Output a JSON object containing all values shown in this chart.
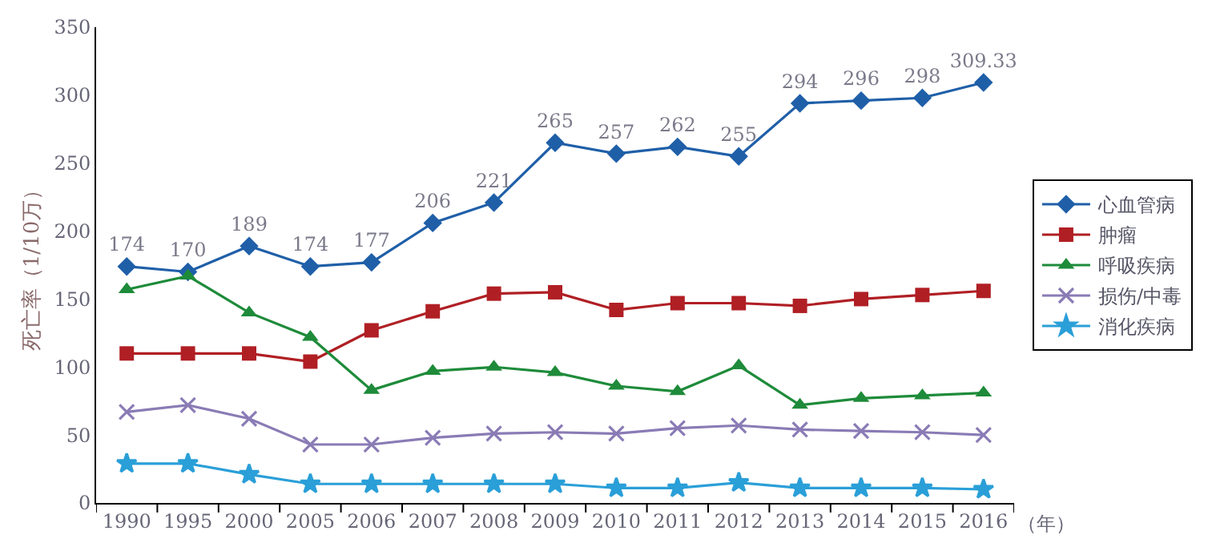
{
  "chart_data": {
    "type": "line",
    "ylabel": "死亡率（1/10万）",
    "annotations": [
      "（年）"
    ],
    "categories": [
      "1990",
      "1995",
      "2000",
      "2005",
      "2006",
      "2007",
      "2008",
      "2009",
      "2010",
      "2011",
      "2012",
      "2013",
      "2014",
      "2015",
      "2016"
    ],
    "ylim": [
      0,
      350
    ],
    "yticks": [
      0,
      50,
      100,
      150,
      200,
      250,
      300,
      350
    ],
    "grid": false,
    "legend": "right",
    "series": [
      {
        "name": "心血管病",
        "color": "#1f5fa8",
        "marker": "diamond",
        "values": [
          174,
          170,
          189,
          174,
          177,
          206,
          221,
          265,
          257,
          262,
          255,
          294,
          296,
          298,
          309.33
        ],
        "value_labels": [
          "174",
          "170",
          "189",
          "174",
          "177",
          "206",
          "221",
          "265",
          "257",
          "262",
          "255",
          "294",
          "296",
          "298",
          "309.33"
        ]
      },
      {
        "name": "肿瘤",
        "color": "#b01f24",
        "marker": "square",
        "values": [
          110,
          110,
          110,
          104,
          127,
          141,
          154,
          155,
          142,
          147,
          147,
          145,
          150,
          153,
          156
        ]
      },
      {
        "name": "呼吸疾病",
        "color": "#1e8b3a",
        "marker": "triangle",
        "values": [
          157,
          167,
          140,
          122,
          83,
          97,
          100,
          96,
          86,
          82,
          101,
          72,
          77,
          79,
          81
        ]
      },
      {
        "name": "损伤/中毒",
        "color": "#8a7bb5",
        "marker": "cross",
        "values": [
          67,
          72,
          62,
          43,
          43,
          48,
          51,
          52,
          51,
          55,
          57,
          54,
          53,
          52,
          50
        ]
      },
      {
        "name": "消化疾病",
        "color": "#2a9fd8",
        "marker": "star",
        "values": [
          29,
          29,
          21,
          14,
          14,
          14,
          14,
          14,
          11,
          11,
          15,
          11,
          11,
          11,
          10
        ]
      }
    ]
  }
}
